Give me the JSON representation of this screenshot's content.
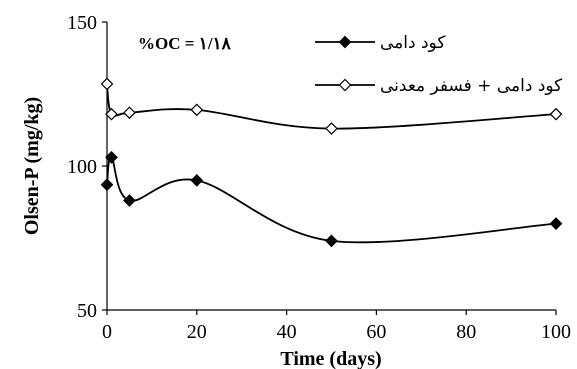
{
  "chart_data": {
    "type": "line",
    "title": "",
    "xlabel": "Time (days)",
    "ylabel": "Olsen-P (mg/kg)",
    "xlim": [
      0,
      100
    ],
    "ylim": [
      50,
      150
    ],
    "x_ticks": [
      "0",
      "20",
      "40",
      "60",
      "80",
      "100"
    ],
    "y_ticks": [
      "50",
      "100",
      "150"
    ],
    "grid": false,
    "legend_placement": "top-right",
    "annotation": "%OC = ۱/۱۸",
    "series": [
      {
        "name": "کود دامی",
        "marker": "filled-diamond",
        "x": [
          0,
          1,
          5,
          20,
          50,
          100
        ],
        "y": [
          93.5,
          103,
          88,
          95,
          74,
          80
        ]
      },
      {
        "name": "کود دامی + فسفر معدنی",
        "marker": "open-diamond",
        "x": [
          0,
          1,
          5,
          20,
          50,
          100
        ],
        "y": [
          128.5,
          118,
          118.5,
          119.5,
          113,
          118
        ]
      }
    ],
    "colors": {
      "line": "#000000",
      "marker_fill_filled": "#000000",
      "marker_fill_open": "#ffffff"
    }
  }
}
